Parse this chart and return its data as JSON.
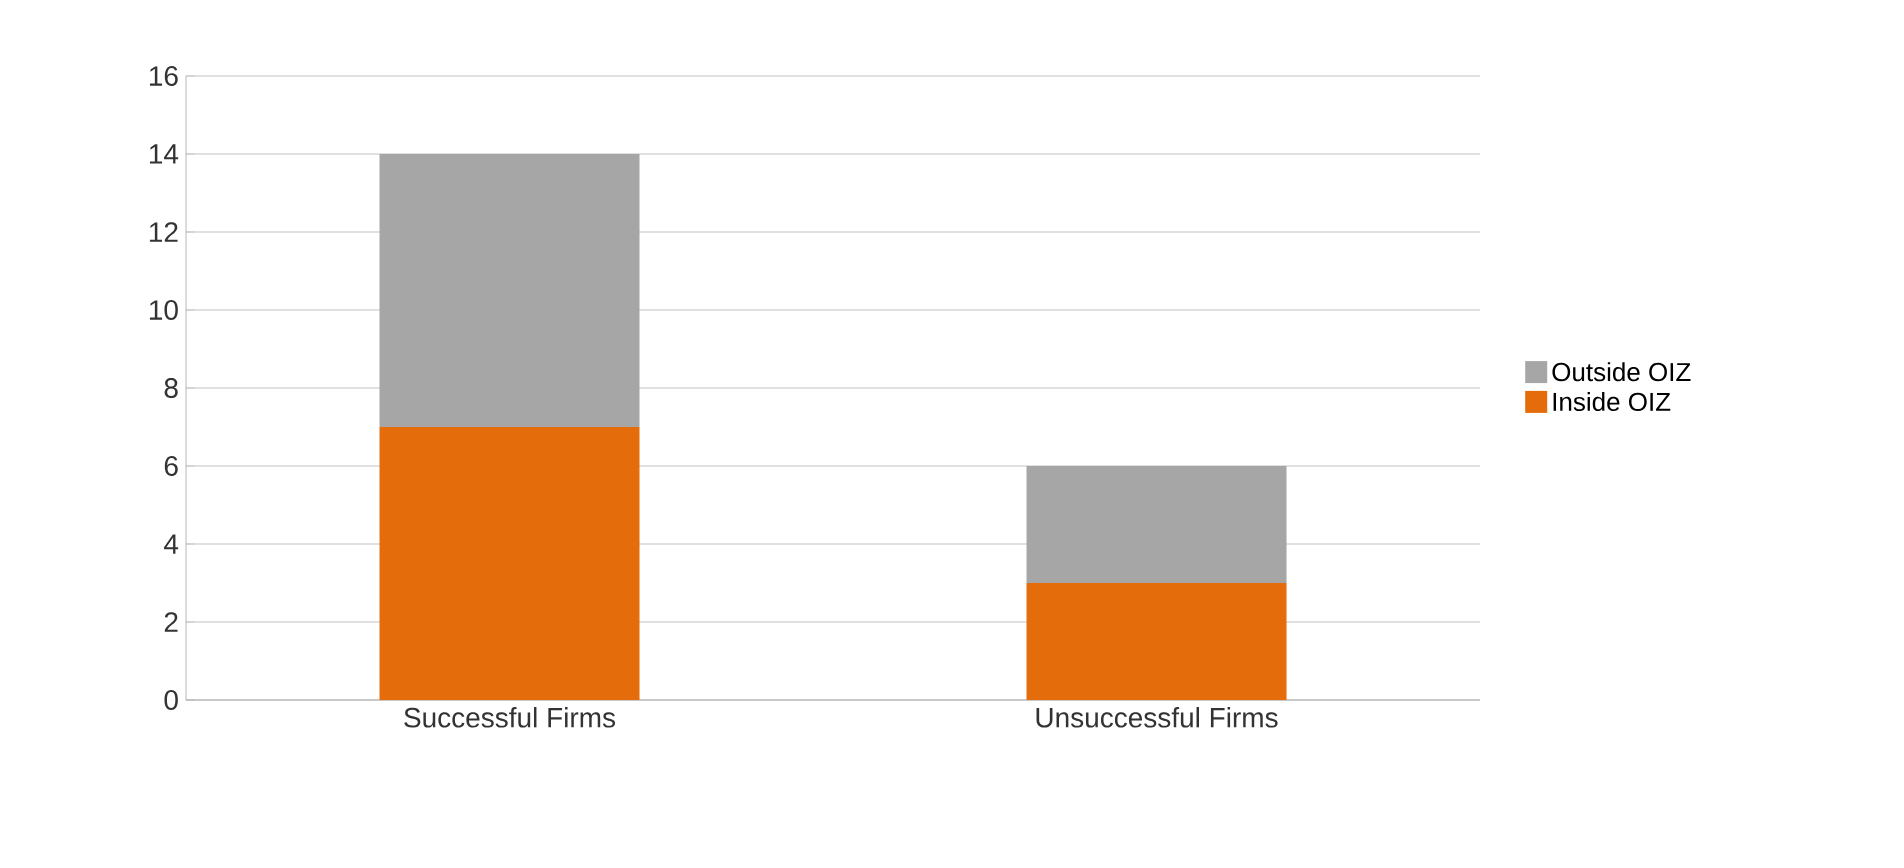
{
  "chart_data": {
    "type": "bar",
    "stacked": true,
    "categories": [
      "Successful Firms",
      "Unsuccessful Firms"
    ],
    "series": [
      {
        "name": "Inside OIZ",
        "color": "#e46c0a",
        "values": [
          7,
          3
        ]
      },
      {
        "name": "Outside OIZ",
        "color": "#a6a6a6",
        "values": [
          7,
          3
        ]
      }
    ],
    "ylim": [
      0,
      16
    ],
    "yticks": [
      0,
      2,
      4,
      6,
      8,
      10,
      12,
      14,
      16
    ],
    "grid": "y",
    "legend": "right"
  }
}
